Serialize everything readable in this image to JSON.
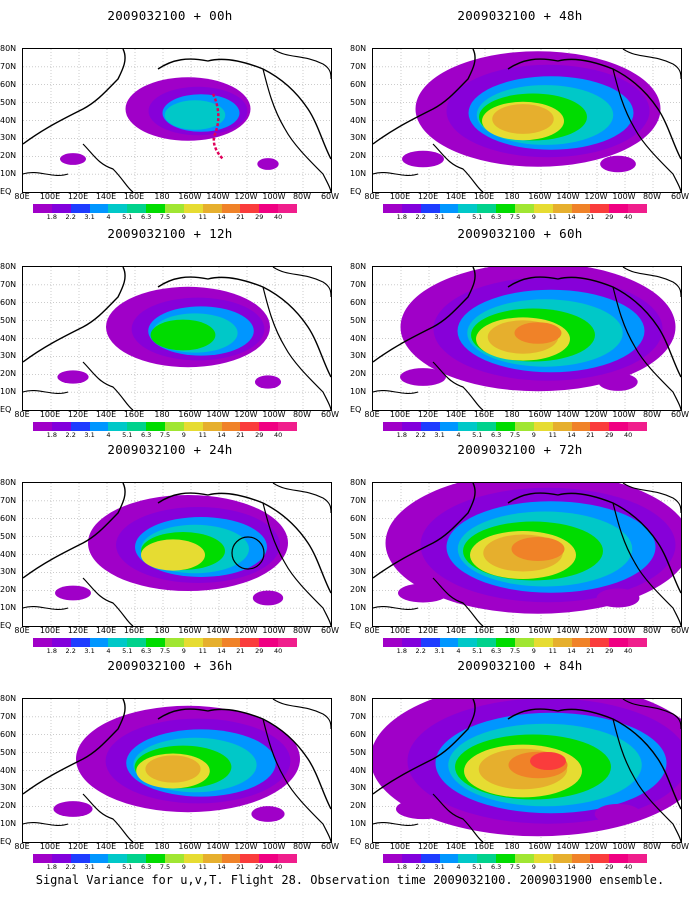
{
  "caption": "Signal Variance for u,v,T. Flight 28. Observation time 2009032100. 2009031900 ensemble.",
  "lat_labels": [
    "80N",
    "70N",
    "60N",
    "50N",
    "40N",
    "30N",
    "20N",
    "10N",
    "EQ"
  ],
  "lon_labels": [
    "80E",
    "100E",
    "120E",
    "140E",
    "160E",
    "180",
    "160W",
    "140W",
    "120W",
    "100W",
    "80W",
    "60W"
  ],
  "colorbar": {
    "labels": [
      "1.8",
      "2.2",
      "3.1",
      "4",
      "5.1",
      "6.3",
      "7.5",
      "9",
      "11",
      "14",
      "21",
      "29",
      "40"
    ],
    "colors": [
      "#a000c8",
      "#8200dc",
      "#1e3cff",
      "#0096ff",
      "#00c8c8",
      "#00d28c",
      "#00dc00",
      "#a0e632",
      "#e6dc32",
      "#e6af2d",
      "#f08228",
      "#fa3c3c",
      "#f00082"
    ]
  },
  "panels": [
    {
      "title": "2009032100 + 00h",
      "level": 0.15,
      "has_track": true,
      "has_circle": false
    },
    {
      "title": "2009032100 + 48h",
      "level": 0.55,
      "has_track": false,
      "has_circle": false
    },
    {
      "title": "2009032100 + 12h",
      "level": 0.28,
      "has_track": false,
      "has_circle": false
    },
    {
      "title": "2009032100 + 60h",
      "level": 0.65,
      "has_track": false,
      "has_circle": false
    },
    {
      "title": "2009032100 + 24h",
      "level": 0.4,
      "has_track": false,
      "has_circle": true
    },
    {
      "title": "2009032100 + 72h",
      "level": 0.75,
      "has_track": false,
      "has_circle": false
    },
    {
      "title": "2009032100 + 36h",
      "level": 0.48,
      "has_track": false,
      "has_circle": false
    },
    {
      "title": "2009032100 + 84h",
      "level": 0.85,
      "has_track": false,
      "has_circle": false
    }
  ]
}
